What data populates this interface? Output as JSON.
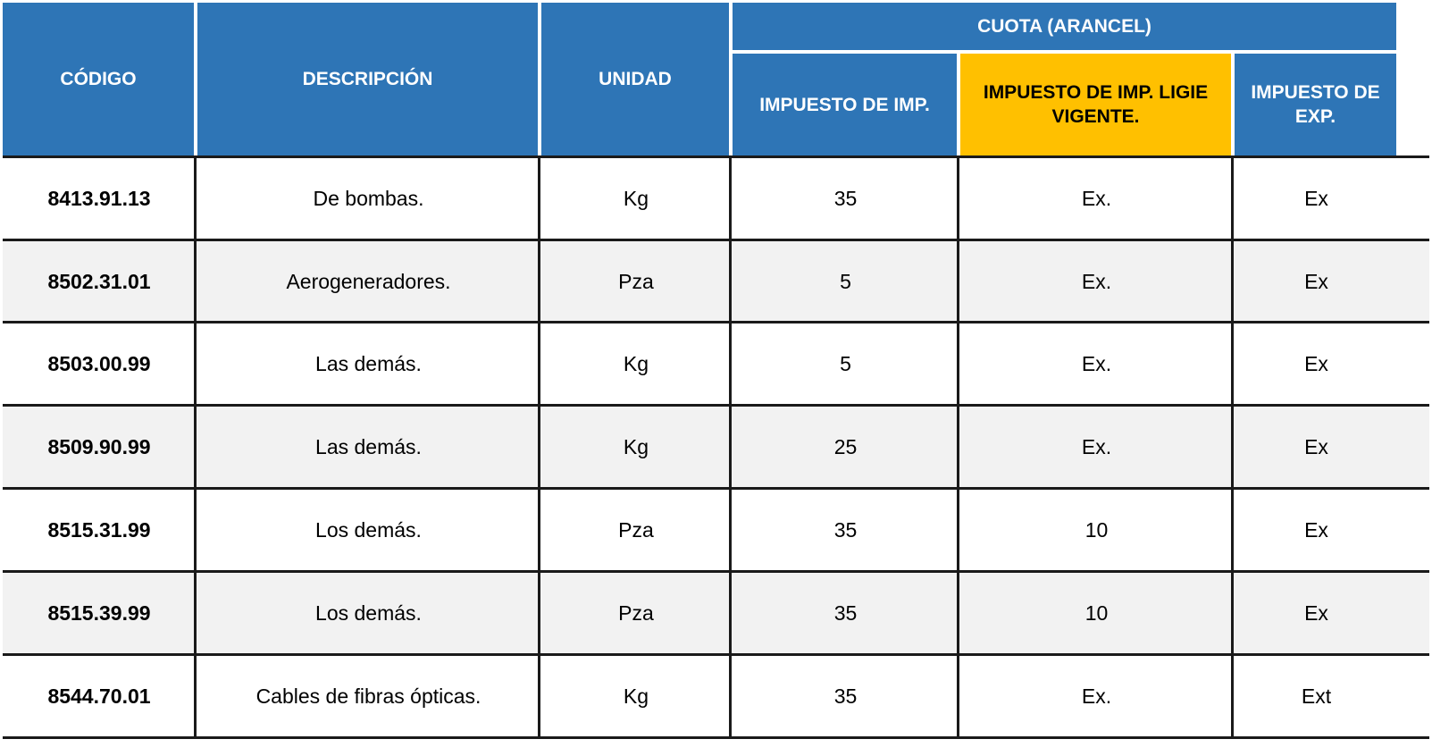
{
  "table": {
    "headers": {
      "codigo": "CÓDIGO",
      "descripcion": "DESCRIPCIÓN",
      "unidad": "UNIDAD",
      "cuota_group": "CUOTA (ARANCEL)",
      "impuesto_imp": "IMPUESTO DE IMP.",
      "impuesto_ligie": "IMPUESTO DE IMP. LIGIE VIGENTE.",
      "impuesto_exp": "IMPUESTO DE EXP."
    },
    "rows": [
      {
        "codigo": "8413.91.13",
        "descripcion": "De bombas.",
        "unidad": "Kg",
        "impuesto_imp": "35",
        "impuesto_ligie": "Ex.",
        "impuesto_exp": "Ex"
      },
      {
        "codigo": "8502.31.01",
        "descripcion": "Aerogeneradores.",
        "unidad": "Pza",
        "impuesto_imp": "5",
        "impuesto_ligie": "Ex.",
        "impuesto_exp": "Ex"
      },
      {
        "codigo": "8503.00.99",
        "descripcion": "Las demás.",
        "unidad": "Kg",
        "impuesto_imp": "5",
        "impuesto_ligie": "Ex.",
        "impuesto_exp": "Ex"
      },
      {
        "codigo": "8509.90.99",
        "descripcion": "Las demás.",
        "unidad": "Kg",
        "impuesto_imp": "25",
        "impuesto_ligie": "Ex.",
        "impuesto_exp": "Ex"
      },
      {
        "codigo": "8515.31.99",
        "descripcion": "Los demás.",
        "unidad": "Pza",
        "impuesto_imp": "35",
        "impuesto_ligie": "10",
        "impuesto_exp": "Ex"
      },
      {
        "codigo": "8515.39.99",
        "descripcion": "Los demás.",
        "unidad": "Pza",
        "impuesto_imp": "35",
        "impuesto_ligie": "10",
        "impuesto_exp": "Ex"
      },
      {
        "codigo": "8544.70.01",
        "descripcion": "Cables de fibras ópticas.",
        "unidad": "Kg",
        "impuesto_imp": "35",
        "impuesto_ligie": "Ex.",
        "impuesto_exp": "Ext"
      }
    ]
  },
  "colors": {
    "header_blue": "#2e75b6",
    "header_highlight": "#ffc000",
    "row_alt": "#f2f2f2",
    "grid": "#1a1a1a"
  }
}
